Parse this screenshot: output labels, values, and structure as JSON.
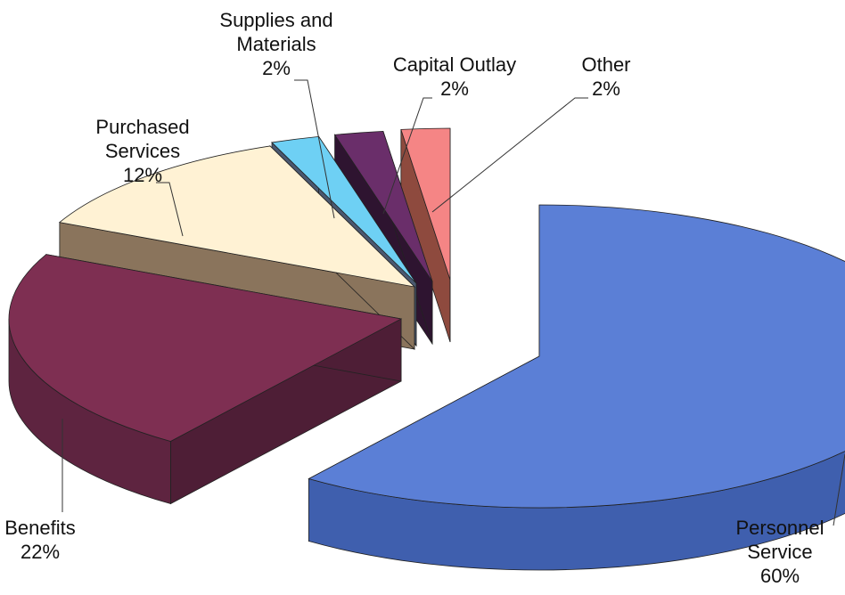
{
  "chart_data": {
    "type": "pie",
    "style": "exploded-3d",
    "slices": [
      {
        "label_lines": [
          "Personnel",
          "Service"
        ],
        "value": 60,
        "value_label": "60%",
        "color": "#5B7FD6",
        "side_color": "#3F5FAE",
        "inner_color": "#4A67B8"
      },
      {
        "label_lines": [
          "Benefits"
        ],
        "value": 22,
        "value_label": "22%",
        "color": "#7E2F52",
        "side_color": "#5E2440",
        "inner_color": "#4E1E36"
      },
      {
        "label_lines": [
          "Purchased",
          "Services"
        ],
        "value": 12,
        "value_label": "12%",
        "color": "#FFF2D4",
        "side_color": "#9A8266",
        "inner_color": "#8A745C"
      },
      {
        "label_lines": [
          "Supplies and",
          "Materials"
        ],
        "value": 2,
        "value_label": "2%",
        "color": "#6ED0F4",
        "side_color": "#5A6A80",
        "inner_color": "#4A5870"
      },
      {
        "label_lines": [
          "Capital Outlay"
        ],
        "value": 2,
        "value_label": "2%",
        "color": "#6A2E6A",
        "side_color": "#3E1A40",
        "inner_color": "#2E1430"
      },
      {
        "label_lines": [
          "Other"
        ],
        "value": 2,
        "value_label": "2%",
        "color": "#F58585",
        "side_color": "#B05A4A",
        "inner_color": "#8E4A3E"
      }
    ],
    "legend": "none"
  }
}
